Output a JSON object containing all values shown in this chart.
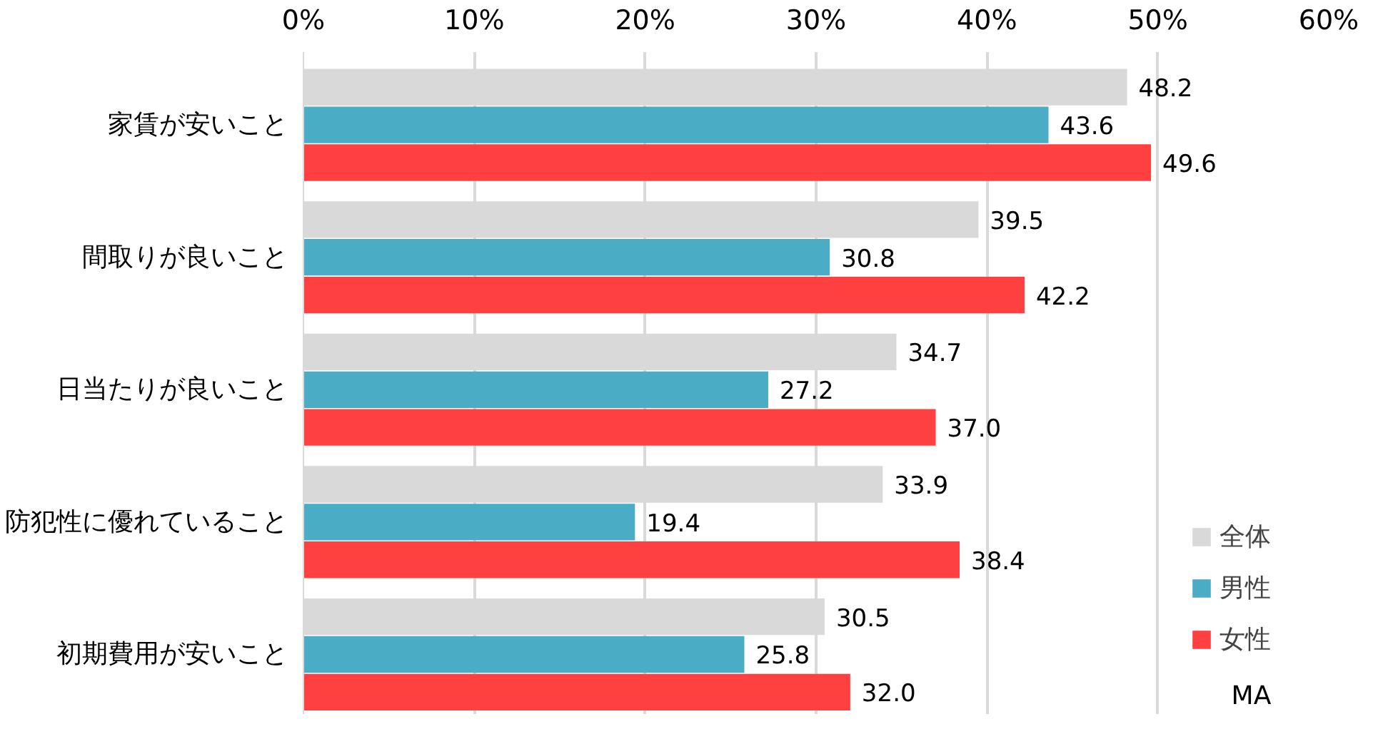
{
  "chart_data": {
    "type": "bar",
    "orientation": "horizontal",
    "categories": [
      "家賃が安いこと",
      "間取りが良いこと",
      "日当たりが良いこと",
      "防犯性に優れていること",
      "初期費用が安いこと"
    ],
    "series": [
      {
        "name": "全体",
        "color": "#d9d9d9",
        "values": [
          48.2,
          39.5,
          34.7,
          33.9,
          30.5
        ]
      },
      {
        "name": "男性",
        "color": "#4bacc6",
        "values": [
          43.6,
          30.8,
          27.2,
          19.4,
          25.8
        ]
      },
      {
        "name": "女性",
        "color": "#ff4040",
        "values": [
          49.6,
          42.2,
          37.0,
          38.4,
          32.0
        ]
      }
    ],
    "value_labels": [
      [
        "48.2",
        "39.5",
        "34.7",
        "33.9",
        "30.5"
      ],
      [
        "43.6",
        "30.8",
        "27.2",
        "19.4",
        "25.8"
      ],
      [
        "49.6",
        "42.2",
        "37.0",
        "38.4",
        "32.0"
      ]
    ],
    "xlim": [
      0,
      60
    ],
    "xticks": [
      {
        "value": 0,
        "label": "0%"
      },
      {
        "value": 10,
        "label": "10%"
      },
      {
        "value": 20,
        "label": "20%"
      },
      {
        "value": 30,
        "label": "30%"
      },
      {
        "value": 40,
        "label": "40%"
      },
      {
        "value": 50,
        "label": "50%"
      },
      {
        "value": 60,
        "label": "60%"
      }
    ],
    "grid": "x",
    "legend": "bottom right",
    "annotations": [
      "MA"
    ]
  }
}
